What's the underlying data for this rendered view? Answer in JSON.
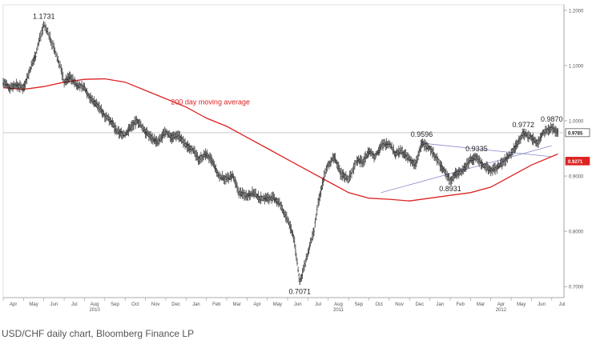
{
  "caption": "USD/CHF daily chart, Bloomberg Finance LP",
  "chart_data": {
    "type": "line",
    "style": "ohlc-bars",
    "title": "",
    "xlabel": "",
    "ylabel": "",
    "ylim": [
      0.68,
      1.21
    ],
    "grid": false,
    "y_ticks": [
      "1.2000",
      "1.1000",
      "1.0000",
      "0.9000",
      "0.8000",
      "0.7000"
    ],
    "y_tick_values": [
      1.2,
      1.1,
      1.0,
      0.9,
      0.8,
      0.7
    ],
    "x_months": [
      "Apr",
      "May",
      "Jun",
      "Jul",
      "Aug",
      "Sep",
      "Oct",
      "Nov",
      "Dec",
      "Jan",
      "Feb",
      "Mar",
      "Apr",
      "May",
      "Jun",
      "Jul",
      "Aug",
      "Sep",
      "Oct",
      "Nov",
      "Dec",
      "Jan",
      "Feb",
      "Mar",
      "Apr",
      "May",
      "Jun",
      "Jul"
    ],
    "x_years": [
      {
        "label": "2010",
        "month_index": 4
      },
      {
        "label": "2011",
        "month_index": 16
      },
      {
        "label": "2012",
        "month_index": 24
      }
    ],
    "price_series": {
      "name": "USD/CHF",
      "color": "#222222",
      "x": [
        0,
        0.3,
        0.6,
        1.0,
        1.3,
        1.6,
        1.8,
        2.0,
        2.2,
        2.4,
        2.6,
        2.8,
        3.0,
        3.3,
        3.6,
        4.0,
        4.3,
        4.6,
        5.0,
        5.3,
        5.6,
        6.0,
        6.3,
        6.6,
        7.0,
        7.3,
        7.6,
        8.0,
        8.3,
        8.6,
        9.0,
        9.3,
        9.6,
        10.0,
        10.3,
        10.6,
        11.0,
        11.3,
        11.6,
        12.0,
        12.3,
        12.6,
        13.0,
        13.3,
        13.6,
        14.0,
        14.3,
        14.6,
        15.0,
        15.3,
        15.5,
        15.8,
        16.0,
        16.3,
        16.6,
        17.0,
        17.2,
        17.4,
        17.7,
        18.0,
        18.3,
        18.6,
        19.0,
        19.3,
        19.6,
        20.0,
        20.3,
        20.6,
        21.0,
        21.3,
        21.5,
        21.8,
        22.0,
        22.3,
        22.6,
        23.0,
        23.3,
        23.6,
        24.0,
        24.3,
        24.6,
        25.0,
        25.3,
        25.6,
        26.0,
        26.3,
        26.6,
        27.0,
        27.3
      ],
      "values": [
        1.07,
        1.06,
        1.065,
        1.06,
        1.09,
        1.12,
        1.15,
        1.1731,
        1.16,
        1.14,
        1.12,
        1.1,
        1.07,
        1.08,
        1.065,
        1.06,
        1.04,
        1.03,
        1.01,
        1.0,
        0.98,
        0.975,
        0.99,
        1.0,
        0.98,
        0.97,
        0.96,
        0.98,
        0.97,
        0.975,
        0.955,
        0.95,
        0.93,
        0.94,
        0.925,
        0.9,
        0.895,
        0.9,
        0.87,
        0.865,
        0.87,
        0.86,
        0.86,
        0.86,
        0.85,
        0.82,
        0.79,
        0.7071,
        0.76,
        0.8,
        0.85,
        0.9,
        0.92,
        0.935,
        0.905,
        0.895,
        0.91,
        0.93,
        0.925,
        0.945,
        0.935,
        0.955,
        0.96,
        0.94,
        0.945,
        0.93,
        0.92,
        0.9596,
        0.95,
        0.935,
        0.92,
        0.905,
        0.8931,
        0.905,
        0.91,
        0.93,
        0.9335,
        0.92,
        0.91,
        0.915,
        0.925,
        0.94,
        0.96,
        0.9772,
        0.97,
        0.96,
        0.98,
        0.987,
        0.98
      ]
    },
    "series": [
      {
        "name": "200 day moving average",
        "color": "#dd2222",
        "x": [
          0,
          1,
          2,
          3,
          4,
          5,
          6,
          7,
          8,
          9,
          10,
          11,
          12,
          13,
          14,
          15,
          16,
          17,
          18,
          19,
          20,
          21,
          22,
          23,
          24,
          25,
          26,
          27.3
        ],
        "values": [
          1.06,
          1.057,
          1.062,
          1.07,
          1.075,
          1.076,
          1.07,
          1.055,
          1.04,
          1.025,
          1.005,
          0.99,
          0.97,
          0.95,
          0.93,
          0.91,
          0.89,
          0.87,
          0.86,
          0.858,
          0.855,
          0.86,
          0.865,
          0.87,
          0.88,
          0.9,
          0.92,
          0.94
        ]
      }
    ],
    "reference_lines": [
      {
        "kind": "horizontal",
        "value": 0.9785,
        "color": "#bbbbbb",
        "label": "0.9785"
      }
    ],
    "trendlines": [
      {
        "color": "#8888cc",
        "points": [
          [
            18.6,
            0.87
          ],
          [
            27.0,
            0.955
          ]
        ]
      },
      {
        "color": "#8888cc",
        "points": [
          [
            20.6,
            0.9596
          ],
          [
            27.0,
            0.935
          ]
        ]
      }
    ],
    "markers": [
      {
        "label": "0.9785",
        "value": 0.9785,
        "style": "boxed",
        "color": "#222222"
      },
      {
        "label": "0.9271",
        "value": 0.9271,
        "style": "filled",
        "color": "#dd2222"
      }
    ],
    "annotations": [
      {
        "text": "1.1731",
        "x": 2.0,
        "y": 1.1731,
        "position": "above"
      },
      {
        "text": "0.7071",
        "x": 14.6,
        "y": 0.7071,
        "position": "below"
      },
      {
        "text": "0.9596",
        "x": 20.6,
        "y": 0.9596,
        "position": "above"
      },
      {
        "text": "0.9335",
        "x": 23.3,
        "y": 0.9335,
        "position": "above"
      },
      {
        "text": "0.8931",
        "x": 22.0,
        "y": 0.8931,
        "position": "below"
      },
      {
        "text": "0.9772",
        "x": 25.6,
        "y": 0.9772,
        "position": "above"
      },
      {
        "text": "0.9870",
        "x": 27.0,
        "y": 0.987,
        "position": "above"
      },
      {
        "text": "200 day moving average",
        "x": 10.2,
        "y": 1.03,
        "position": "center",
        "color": "#dd2222"
      }
    ]
  }
}
